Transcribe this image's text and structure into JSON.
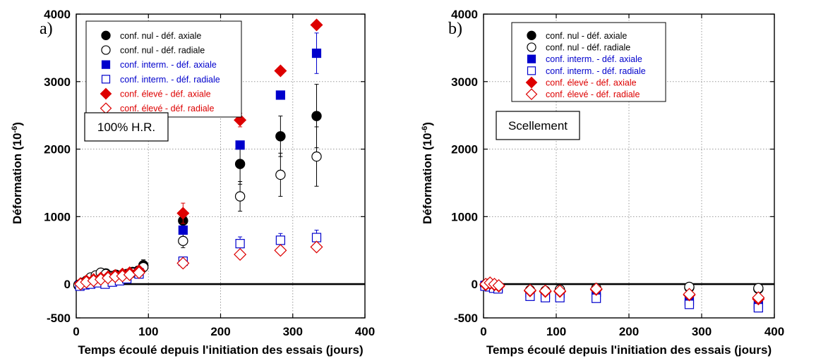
{
  "chart_data": [
    {
      "type": "scatter",
      "panel_letter": "a)",
      "condition_label": "100% H.R.",
      "xlabel": "Temps écoulé depuis l'initiation des essais (jours)",
      "ylabel": "Déformation (10",
      "ylabel_exp": "-6",
      "ylabel_close": ")",
      "xlim": [
        0,
        400
      ],
      "ylim": [
        -500,
        4000
      ],
      "xticks": [
        0,
        100,
        200,
        300,
        400
      ],
      "yticks": [
        -500,
        0,
        1000,
        2000,
        3000,
        4000
      ],
      "grid": true,
      "legend_position": "top-left",
      "series": [
        {
          "name": "conf. nul - déf. axiale",
          "color": "#000000",
          "marker": "circle",
          "filled": true,
          "x": [
            3,
            8,
            14,
            20,
            27,
            34,
            41,
            48,
            55,
            62,
            70,
            78,
            86,
            93,
            148,
            227,
            283,
            333
          ],
          "y": [
            -20,
            10,
            40,
            70,
            110,
            150,
            160,
            120,
            140,
            130,
            150,
            180,
            200,
            280,
            940,
            1780,
            2190,
            2490
          ],
          "err": [
            0,
            0,
            0,
            0,
            0,
            0,
            0,
            0,
            0,
            0,
            0,
            0,
            0,
            80,
            120,
            300,
            300,
            470
          ]
        },
        {
          "name": "conf. nul - déf. radiale",
          "color": "#000000",
          "marker": "circle",
          "filled": false,
          "x": [
            3,
            8,
            14,
            20,
            27,
            34,
            41,
            48,
            55,
            62,
            70,
            78,
            86,
            93,
            148,
            227,
            283,
            333
          ],
          "y": [
            -10,
            20,
            50,
            100,
            130,
            170,
            150,
            110,
            120,
            100,
            130,
            170,
            180,
            250,
            640,
            1300,
            1620,
            1890
          ],
          "err": [
            0,
            0,
            0,
            0,
            0,
            0,
            0,
            0,
            0,
            0,
            0,
            0,
            0,
            60,
            100,
            220,
            320,
            440
          ]
        },
        {
          "name": "conf. interm. - déf. axiale",
          "color": "#0000cc",
          "marker": "square",
          "filled": true,
          "x": [
            5,
            12,
            20,
            30,
            40,
            50,
            60,
            70,
            87,
            148,
            227,
            283,
            333
          ],
          "y": [
            -20,
            0,
            20,
            40,
            60,
            80,
            90,
            110,
            170,
            800,
            2060,
            2800,
            3420
          ],
          "err": [
            0,
            0,
            0,
            0,
            0,
            0,
            0,
            0,
            40,
            0,
            0,
            0,
            300
          ]
        },
        {
          "name": "conf. interm. - déf. radiale",
          "color": "#0000cc",
          "marker": "square",
          "filled": false,
          "x": [
            5,
            12,
            20,
            30,
            40,
            50,
            60,
            70,
            87,
            148,
            227,
            283,
            333
          ],
          "y": [
            -30,
            -10,
            0,
            20,
            0,
            30,
            50,
            80,
            150,
            340,
            600,
            650,
            690
          ],
          "err": [
            0,
            0,
            0,
            0,
            0,
            0,
            0,
            0,
            0,
            50,
            100,
            100,
            110
          ]
        },
        {
          "name": "conf. élevé - déf. axiale",
          "color": "#dd0000",
          "marker": "diamond",
          "filled": true,
          "x": [
            6,
            14,
            24,
            34,
            44,
            54,
            64,
            74,
            87,
            148,
            227,
            283,
            333
          ],
          "y": [
            10,
            50,
            70,
            90,
            110,
            130,
            150,
            170,
            200,
            1050,
            2430,
            3160,
            3840
          ],
          "err": [
            0,
            0,
            0,
            0,
            0,
            0,
            0,
            0,
            0,
            150,
            100,
            0,
            0
          ]
        },
        {
          "name": "conf. élevé - déf. radiale",
          "color": "#dd0000",
          "marker": "diamond",
          "filled": false,
          "x": [
            6,
            14,
            24,
            34,
            44,
            54,
            64,
            74,
            87,
            148,
            227,
            283,
            333
          ],
          "y": [
            0,
            30,
            50,
            70,
            90,
            110,
            120,
            140,
            170,
            310,
            440,
            500,
            550
          ],
          "err": [
            0,
            0,
            0,
            0,
            0,
            0,
            0,
            0,
            0,
            60,
            0,
            0,
            0
          ]
        }
      ]
    },
    {
      "type": "scatter",
      "panel_letter": "b)",
      "condition_label": "Scellement",
      "xlabel": "Temps écoulé depuis l'initiation des essais (jours)",
      "ylabel": "Déformation (10",
      "ylabel_exp": "-6",
      "ylabel_close": ")",
      "xlim": [
        0,
        400
      ],
      "ylim": [
        -500,
        4000
      ],
      "xticks": [
        0,
        100,
        200,
        300,
        400
      ],
      "yticks": [
        -500,
        0,
        1000,
        2000,
        3000,
        4000
      ],
      "grid": true,
      "legend_position": "top-left",
      "series": [
        {
          "name": "conf. nul - déf. axiale",
          "color": "#000000",
          "marker": "circle",
          "filled": true,
          "x": [
            2,
            8,
            14,
            20,
            64,
            85,
            105,
            155,
            283,
            378
          ],
          "y": [
            -10,
            0,
            -20,
            -30,
            -100,
            -110,
            -90,
            -70,
            -50,
            -70
          ],
          "err": [
            0,
            0,
            0,
            0,
            0,
            0,
            0,
            0,
            40,
            60
          ]
        },
        {
          "name": "conf. nul - déf. radiale",
          "color": "#000000",
          "marker": "circle",
          "filled": false,
          "x": [
            2,
            8,
            14,
            20,
            64,
            85,
            105,
            155,
            283,
            378
          ],
          "y": [
            -20,
            10,
            -10,
            -20,
            -90,
            -100,
            -80,
            -60,
            -40,
            -60
          ],
          "err": [
            0,
            0,
            0,
            0,
            0,
            0,
            0,
            0,
            40,
            60
          ]
        },
        {
          "name": "conf. interm. - déf. axiale",
          "color": "#0000cc",
          "marker": "square",
          "filled": true,
          "x": [
            2,
            8,
            14,
            20,
            64,
            85,
            105,
            155,
            283,
            378
          ],
          "y": [
            -20,
            -30,
            -40,
            -50,
            -130,
            -150,
            -140,
            -120,
            -250,
            -300
          ],
          "err": [
            0,
            0,
            0,
            0,
            0,
            0,
            0,
            0,
            0,
            0
          ]
        },
        {
          "name": "conf. interm. - déf. radiale",
          "color": "#0000cc",
          "marker": "square",
          "filled": false,
          "x": [
            2,
            8,
            14,
            20,
            64,
            85,
            105,
            155,
            283,
            378
          ],
          "y": [
            -30,
            -40,
            -60,
            -70,
            -180,
            -200,
            -200,
            -210,
            -300,
            -350
          ],
          "err": [
            0,
            0,
            0,
            0,
            0,
            0,
            0,
            0,
            0,
            0
          ]
        },
        {
          "name": "conf. élevé - déf. axiale",
          "color": "#dd0000",
          "marker": "diamond",
          "filled": true,
          "x": [
            3,
            9,
            15,
            21,
            64,
            85,
            105,
            155,
            283,
            378
          ],
          "y": [
            -10,
            10,
            -10,
            -30,
            -100,
            -110,
            -110,
            -80,
            -160,
            -220
          ],
          "err": [
            0,
            0,
            0,
            0,
            0,
            0,
            0,
            0,
            0,
            0
          ]
        },
        {
          "name": "conf. élevé - déf. radiale",
          "color": "#dd0000",
          "marker": "diamond",
          "filled": false,
          "x": [
            3,
            9,
            15,
            21,
            64,
            85,
            105,
            155,
            283,
            378
          ],
          "y": [
            0,
            20,
            0,
            -20,
            -90,
            -100,
            -100,
            -70,
            -150,
            -200
          ],
          "err": [
            0,
            0,
            0,
            0,
            0,
            0,
            0,
            0,
            0,
            0
          ]
        }
      ]
    }
  ]
}
